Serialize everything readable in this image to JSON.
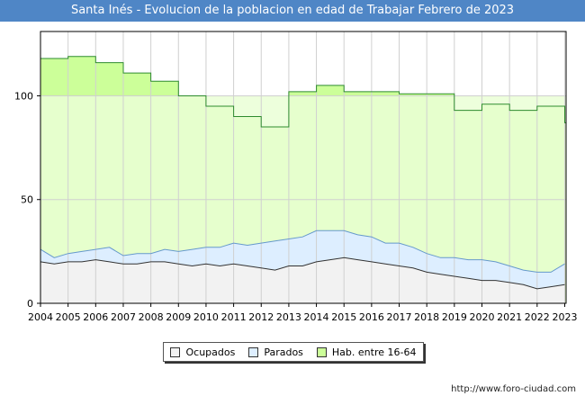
{
  "title": "Santa Inés - Evolucion de la poblacion en edad de Trabajar Febrero de 2023",
  "source": "http://www.foro-ciudad.com",
  "colors": {
    "title_bg": "#4f86c6",
    "hab_fill": "#ccff99",
    "hab_fill_light": "#eaffd6",
    "hab_line": "#2e8b2e",
    "parados_fill": "#ddeeff",
    "parados_line": "#6699cc",
    "ocupados_fill": "#f2f2f2",
    "ocupados_line": "#333333"
  },
  "chart_data": {
    "type": "area",
    "title": "Santa Inés - Evolucion de la poblacion en edad de Trabajar Febrero de 2023",
    "x_ticks": [
      "2004",
      "2005",
      "2006",
      "2007",
      "2008",
      "2009",
      "2010",
      "2011",
      "2012",
      "2013",
      "2014",
      "2015",
      "2016",
      "2017",
      "2018",
      "2019",
      "2020",
      "2021",
      "2022",
      "2023"
    ],
    "y_ticks": [
      0,
      50,
      100
    ],
    "ylim": [
      0,
      131
    ],
    "xlim": [
      2004,
      2023.05
    ],
    "grid": true,
    "legend": [
      "Ocupados",
      "Parados",
      "Hab. entre 16-64"
    ],
    "legend_position": "bottom",
    "series": [
      {
        "name": "Hab. entre 16-64",
        "x": [
          2004,
          2005,
          2006,
          2007,
          2008,
          2009,
          2010,
          2011,
          2012,
          2013,
          2014,
          2015,
          2016,
          2017,
          2018,
          2019,
          2020,
          2021,
          2022,
          2023
        ],
        "values": [
          118,
          119,
          116,
          111,
          107,
          100,
          95,
          90,
          85,
          102,
          105,
          102,
          102,
          101,
          101,
          93,
          96,
          93,
          95,
          87
        ]
      },
      {
        "name": "Parados",
        "x": [
          2004,
          2004.5,
          2005,
          2005.5,
          2006,
          2006.5,
          2007,
          2007.5,
          2008,
          2008.5,
          2009,
          2009.5,
          2010,
          2010.5,
          2011,
          2011.5,
          2012,
          2012.5,
          2013,
          2013.5,
          2014,
          2014.5,
          2015,
          2015.5,
          2016,
          2016.5,
          2017,
          2017.5,
          2018,
          2018.5,
          2019,
          2019.5,
          2020,
          2020.5,
          2021,
          2021.5,
          2022,
          2022.5,
          2023
        ],
        "values": [
          6,
          3,
          4,
          5,
          5,
          7,
          4,
          5,
          4,
          6,
          6,
          8,
          8,
          9,
          10,
          10,
          12,
          14,
          13,
          14,
          15,
          14,
          13,
          12,
          12,
          10,
          11,
          10,
          9,
          8,
          9,
          9,
          10,
          9,
          8,
          7,
          8,
          7,
          10
        ]
      },
      {
        "name": "Ocupados",
        "x": [
          2004,
          2004.5,
          2005,
          2005.5,
          2006,
          2006.5,
          2007,
          2007.5,
          2008,
          2008.5,
          2009,
          2009.5,
          2010,
          2010.5,
          2011,
          2011.5,
          2012,
          2012.5,
          2013,
          2013.5,
          2014,
          2014.5,
          2015,
          2015.5,
          2016,
          2016.5,
          2017,
          2017.5,
          2018,
          2018.5,
          2019,
          2019.5,
          2020,
          2020.5,
          2021,
          2021.5,
          2022,
          2022.5,
          2023
        ],
        "values": [
          20,
          19,
          20,
          20,
          21,
          20,
          19,
          19,
          20,
          20,
          19,
          18,
          19,
          18,
          19,
          18,
          17,
          16,
          18,
          18,
          20,
          21,
          22,
          21,
          20,
          19,
          18,
          17,
          15,
          14,
          13,
          12,
          11,
          11,
          10,
          9,
          7,
          8,
          9
        ]
      }
    ]
  }
}
